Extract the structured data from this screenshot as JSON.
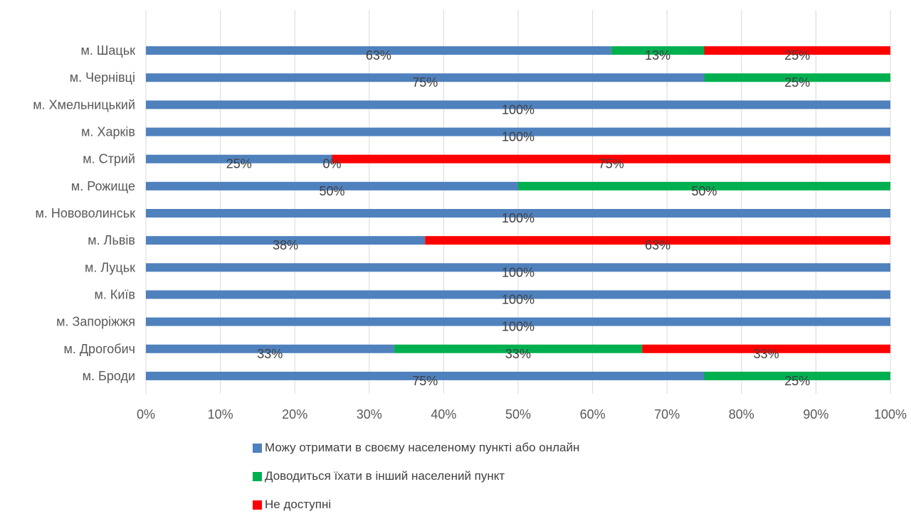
{
  "chart_data": {
    "type": "bar",
    "orientation": "horizontal",
    "stacked": "percent",
    "categories": [
      "м. Шацьк",
      "м. Чернівці",
      "м. Хмельницький",
      "м. Харків",
      "м. Стрий",
      "м. Рожище",
      "м. Нововолинськ",
      "м. Львів",
      "м. Луцьк",
      "м. Київ",
      "м. Запоріжжя",
      "м. Дрогобич",
      "м. Броди"
    ],
    "series": [
      {
        "name": "Можу отримати в своєму населеному пункті або онлайн",
        "color": "#4F81BD",
        "values": [
          62.5,
          75,
          100,
          100,
          25,
          50,
          100,
          37.5,
          100,
          100,
          100,
          33.33,
          75
        ],
        "labels": [
          "63%",
          "75%",
          "100%",
          "100%",
          "25%",
          "50%",
          "100%",
          "38%",
          "100%",
          "100%",
          "100%",
          "33%",
          "75%"
        ]
      },
      {
        "name": "Доводиться їхати в інший населений пункт",
        "color": "#00B050",
        "values": [
          12.5,
          25,
          0,
          0,
          0,
          50,
          0,
          0,
          0,
          0,
          0,
          33.33,
          25
        ],
        "labels": [
          "13%",
          "25%",
          "",
          "",
          "0%",
          "50%",
          "",
          "",
          "",
          "",
          "",
          "33%",
          "25%"
        ]
      },
      {
        "name": "Не доступні",
        "color": "#FF0000",
        "values": [
          25,
          0,
          0,
          0,
          75,
          0,
          0,
          62.5,
          0,
          0,
          0,
          33.34,
          0
        ],
        "labels": [
          "25%",
          "",
          "",
          "",
          "75%",
          "",
          "",
          "63%",
          "",
          "",
          "",
          "33%",
          ""
        ]
      }
    ],
    "x_ticks": [
      "0%",
      "10%",
      "20%",
      "30%",
      "40%",
      "50%",
      "60%",
      "70%",
      "80%",
      "90%",
      "100%"
    ],
    "xlim": [
      0,
      100
    ],
    "grid": true,
    "legend_position": "bottom"
  }
}
